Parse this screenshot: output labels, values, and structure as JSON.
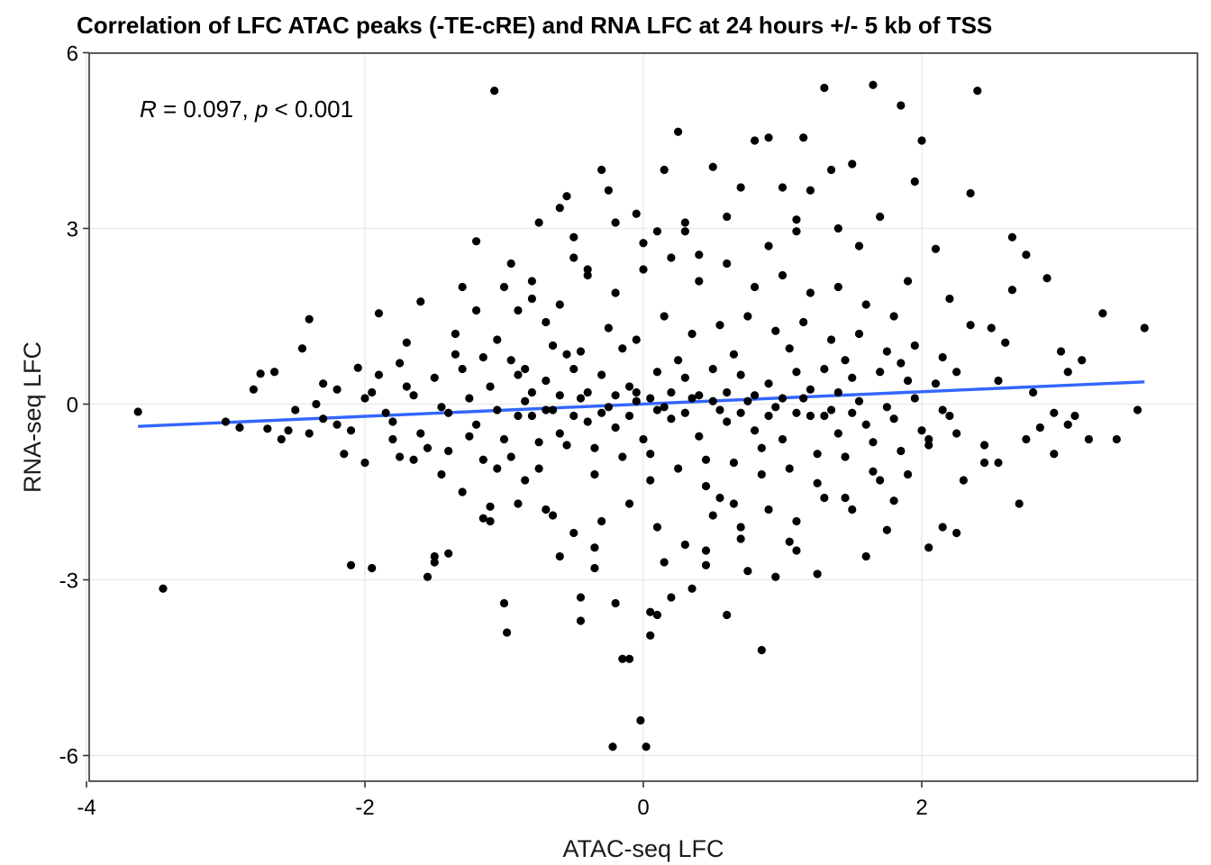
{
  "chart_data": {
    "type": "scatter",
    "title": "Correlation of LFC ATAC peaks (-TE-cRE) and RNA LFC at 24 hours +/- 5 kb of TSS",
    "xlabel": "ATAC-seq LFC",
    "ylabel": "RNA-seq LFC",
    "xlim": [
      -4.0,
      4.0
    ],
    "ylim": [
      -6.4,
      6.0
    ],
    "xticks": [
      -4,
      -2,
      0,
      2
    ],
    "xtick_labels": [
      "-4",
      "-2",
      "0",
      "2"
    ],
    "yticks": [
      -6,
      -3,
      0,
      3,
      6
    ],
    "ytick_labels": [
      "-6",
      "-3",
      "0",
      "3",
      "6"
    ],
    "grid": true,
    "annotation": {
      "r_symbol": "R",
      "r_text": " = 0.097, ",
      "p_symbol": "p",
      "p_text": " < 0.001"
    },
    "regression_line": {
      "x": [
        -3.63,
        3.6
      ],
      "y": [
        -0.38,
        0.38
      ],
      "color": "#3366FF"
    },
    "point_color": "#000000",
    "points": [
      [
        -3.63,
        -0.13
      ],
      [
        -3.45,
        -3.15
      ],
      [
        -2.8,
        0.25
      ],
      [
        -2.75,
        0.52
      ],
      [
        -2.7,
        -0.42
      ],
      [
        -2.65,
        0.55
      ],
      [
        -2.6,
        -0.6
      ],
      [
        -2.5,
        -0.1
      ],
      [
        -2.45,
        0.95
      ],
      [
        -2.4,
        1.45
      ],
      [
        -2.4,
        -0.5
      ],
      [
        -2.3,
        -0.25
      ],
      [
        -2.2,
        0.25
      ],
      [
        -2.15,
        -0.85
      ],
      [
        -2.1,
        -2.75
      ],
      [
        -2.05,
        0.62
      ],
      [
        -2.0,
        -1.0
      ],
      [
        -1.95,
        -2.8
      ],
      [
        -1.9,
        1.55
      ],
      [
        -1.8,
        -0.6
      ],
      [
        -1.75,
        -0.9
      ],
      [
        -1.7,
        1.05
      ],
      [
        -1.65,
        -0.95
      ],
      [
        -1.6,
        1.75
      ],
      [
        -1.55,
        -2.95
      ],
      [
        -1.5,
        -2.7
      ],
      [
        -1.5,
        -2.6
      ],
      [
        -1.4,
        -2.55
      ],
      [
        -1.4,
        -0.8
      ],
      [
        -1.3,
        2.0
      ],
      [
        -1.3,
        -1.5
      ],
      [
        -1.2,
        2.78
      ],
      [
        -1.15,
        -1.95
      ],
      [
        -1.1,
        -1.75
      ],
      [
        -1.05,
        -1.1
      ],
      [
        -1.0,
        -3.4
      ],
      [
        -0.98,
        -3.9
      ],
      [
        -0.95,
        2.4
      ],
      [
        -1.07,
        5.35
      ],
      [
        -0.9,
        1.6
      ],
      [
        -0.85,
        -1.3
      ],
      [
        -0.8,
        1.8
      ],
      [
        -0.75,
        3.1
      ],
      [
        -0.7,
        1.4
      ],
      [
        -0.65,
        -1.9
      ],
      [
        -0.6,
        3.35
      ],
      [
        -0.55,
        3.55
      ],
      [
        -0.5,
        2.5
      ],
      [
        -0.45,
        -3.7
      ],
      [
        -0.45,
        -3.3
      ],
      [
        -0.4,
        2.3
      ],
      [
        -0.35,
        -2.8
      ],
      [
        -0.3,
        4.0
      ],
      [
        -0.25,
        3.65
      ],
      [
        -0.2,
        -3.4
      ],
      [
        -0.15,
        -4.35
      ],
      [
        -0.1,
        -4.35
      ],
      [
        -0.05,
        3.25
      ],
      [
        0.0,
        2.75
      ],
      [
        0.05,
        -3.55
      ],
      [
        0.1,
        2.95
      ],
      [
        0.15,
        4.0
      ],
      [
        -0.02,
        -5.4
      ],
      [
        0.02,
        -5.85
      ],
      [
        -0.22,
        -5.85
      ],
      [
        0.05,
        -3.95
      ],
      [
        0.1,
        -3.6
      ],
      [
        0.2,
        -3.3
      ],
      [
        0.25,
        4.65
      ],
      [
        0.3,
        3.1
      ],
      [
        0.35,
        -3.15
      ],
      [
        0.4,
        2.55
      ],
      [
        0.45,
        -2.75
      ],
      [
        0.5,
        4.05
      ],
      [
        0.55,
        -1.6
      ],
      [
        0.6,
        -3.6
      ],
      [
        0.65,
        -1.7
      ],
      [
        0.7,
        3.7
      ],
      [
        0.75,
        -2.85
      ],
      [
        0.8,
        4.5
      ],
      [
        0.85,
        -4.2
      ],
      [
        0.9,
        4.55
      ],
      [
        0.95,
        -2.95
      ],
      [
        1.0,
        3.7
      ],
      [
        1.05,
        -2.35
      ],
      [
        1.1,
        3.15
      ],
      [
        1.15,
        4.55
      ],
      [
        1.2,
        3.65
      ],
      [
        1.25,
        -2.9
      ],
      [
        1.3,
        5.4
      ],
      [
        1.35,
        4.0
      ],
      [
        1.4,
        3.0
      ],
      [
        1.45,
        -1.6
      ],
      [
        1.5,
        4.1
      ],
      [
        1.55,
        2.7
      ],
      [
        1.6,
        -2.6
      ],
      [
        1.65,
        5.45
      ],
      [
        1.7,
        3.2
      ],
      [
        1.75,
        -2.15
      ],
      [
        1.8,
        -1.65
      ],
      [
        1.85,
        5.1
      ],
      [
        1.9,
        2.1
      ],
      [
        1.95,
        3.8
      ],
      [
        2.0,
        4.5
      ],
      [
        2.05,
        -2.45
      ],
      [
        2.1,
        2.65
      ],
      [
        2.15,
        -2.1
      ],
      [
        2.2,
        1.8
      ],
      [
        2.25,
        -2.2
      ],
      [
        2.3,
        -1.3
      ],
      [
        2.35,
        3.6
      ],
      [
        2.4,
        5.35
      ],
      [
        2.45,
        -0.7
      ],
      [
        2.5,
        1.3
      ],
      [
        2.55,
        -1.0
      ],
      [
        2.6,
        1.05
      ],
      [
        2.65,
        2.85
      ],
      [
        2.7,
        -1.7
      ],
      [
        2.75,
        2.55
      ],
      [
        2.8,
        0.2
      ],
      [
        2.85,
        -0.4
      ],
      [
        2.9,
        2.15
      ],
      [
        2.95,
        -0.85
      ],
      [
        3.0,
        0.9
      ],
      [
        3.05,
        0.55
      ],
      [
        3.1,
        -0.2
      ],
      [
        3.15,
        0.75
      ],
      [
        3.2,
        -0.6
      ],
      [
        3.3,
        1.55
      ],
      [
        3.4,
        -0.6
      ],
      [
        3.55,
        -0.1
      ],
      [
        3.6,
        1.3
      ],
      [
        3.05,
        -0.35
      ],
      [
        2.95,
        -0.15
      ],
      [
        2.75,
        -0.6
      ],
      [
        2.65,
        1.95
      ],
      [
        2.55,
        0.4
      ],
      [
        2.45,
        -1.0
      ],
      [
        2.35,
        1.35
      ],
      [
        2.25,
        0.55
      ],
      [
        -1.45,
        -1.2
      ],
      [
        -1.35,
        1.2
      ],
      [
        -1.25,
        -0.55
      ],
      [
        -1.15,
        0.8
      ],
      [
        -1.05,
        1.1
      ],
      [
        -0.95,
        -0.9
      ],
      [
        -0.85,
        0.6
      ],
      [
        -0.75,
        -1.1
      ],
      [
        -0.65,
        1.0
      ],
      [
        -0.55,
        -0.7
      ],
      [
        -0.45,
        0.9
      ],
      [
        -0.35,
        -1.2
      ],
      [
        -0.25,
        1.3
      ],
      [
        -0.15,
        -0.9
      ],
      [
        -0.05,
        1.1
      ],
      [
        0.05,
        -1.3
      ],
      [
        0.15,
        1.5
      ],
      [
        0.25,
        -1.1
      ],
      [
        0.35,
        1.2
      ],
      [
        0.45,
        -1.4
      ],
      [
        0.55,
        1.35
      ],
      [
        0.65,
        -1.0
      ],
      [
        0.75,
        1.5
      ],
      [
        0.85,
        -1.2
      ],
      [
        0.95,
        1.25
      ],
      [
        1.05,
        -1.1
      ],
      [
        1.15,
        1.4
      ],
      [
        1.25,
        -1.35
      ],
      [
        1.35,
        1.1
      ],
      [
        1.45,
        -0.9
      ],
      [
        1.55,
        1.2
      ],
      [
        1.65,
        -1.15
      ],
      [
        1.75,
        0.9
      ],
      [
        1.85,
        -0.8
      ],
      [
        1.95,
        1.0
      ],
      [
        2.05,
        -0.7
      ],
      [
        2.15,
        0.8
      ],
      [
        2.25,
        -0.5
      ],
      [
        -1.9,
        0.5
      ],
      [
        -1.8,
        -0.3
      ],
      [
        -1.7,
        0.3
      ],
      [
        -1.6,
        -0.5
      ],
      [
        -1.5,
        0.45
      ],
      [
        -1.4,
        -0.15
      ],
      [
        -1.3,
        0.6
      ],
      [
        -1.2,
        -0.35
      ],
      [
        -1.1,
        0.3
      ],
      [
        -1.0,
        -0.6
      ],
      [
        -0.9,
        0.5
      ],
      [
        -0.8,
        -0.2
      ],
      [
        -0.7,
        0.4
      ],
      [
        -0.6,
        -0.5
      ],
      [
        -0.5,
        0.6
      ],
      [
        -0.4,
        -0.3
      ],
      [
        -0.3,
        0.5
      ],
      [
        -0.2,
        -0.4
      ],
      [
        -0.1,
        0.3
      ],
      [
        0.0,
        -0.6
      ],
      [
        0.1,
        0.55
      ],
      [
        0.2,
        -0.25
      ],
      [
        0.3,
        0.45
      ],
      [
        0.4,
        -0.55
      ],
      [
        0.5,
        0.6
      ],
      [
        0.6,
        -0.3
      ],
      [
        0.7,
        0.5
      ],
      [
        0.8,
        -0.45
      ],
      [
        0.9,
        0.35
      ],
      [
        1.0,
        -0.6
      ],
      [
        1.1,
        0.55
      ],
      [
        1.2,
        -0.2
      ],
      [
        1.3,
        0.6
      ],
      [
        1.4,
        -0.5
      ],
      [
        1.5,
        0.45
      ],
      [
        1.6,
        -0.35
      ],
      [
        1.7,
        0.55
      ],
      [
        1.8,
        -0.25
      ],
      [
        1.9,
        0.4
      ],
      [
        2.0,
        -0.45
      ],
      [
        2.1,
        0.35
      ],
      [
        2.2,
        -0.2
      ],
      [
        -2.2,
        -0.35
      ],
      [
        -2.0,
        0.1
      ],
      [
        -1.85,
        -0.15
      ],
      [
        -1.65,
        0.15
      ],
      [
        -1.45,
        -0.05
      ],
      [
        -1.25,
        0.1
      ],
      [
        -1.05,
        -0.1
      ],
      [
        -0.85,
        0.05
      ],
      [
        -0.65,
        -0.1
      ],
      [
        -0.45,
        0.1
      ],
      [
        -0.25,
        -0.05
      ],
      [
        -0.05,
        0.05
      ],
      [
        0.15,
        -0.05
      ],
      [
        0.35,
        0.1
      ],
      [
        0.55,
        -0.1
      ],
      [
        0.75,
        0.05
      ],
      [
        0.95,
        -0.05
      ],
      [
        1.15,
        0.1
      ],
      [
        1.35,
        -0.1
      ],
      [
        1.55,
        0.05
      ],
      [
        1.75,
        -0.05
      ],
      [
        1.95,
        0.1
      ],
      [
        2.15,
        -0.1
      ],
      [
        -2.35,
        0.0
      ],
      [
        -1.75,
        0.7
      ],
      [
        -1.55,
        -0.75
      ],
      [
        -1.35,
        0.85
      ],
      [
        -1.15,
        -0.95
      ],
      [
        -0.95,
        0.75
      ],
      [
        -0.75,
        -0.65
      ],
      [
        -0.55,
        0.85
      ],
      [
        -0.35,
        -0.75
      ],
      [
        -0.15,
        0.95
      ],
      [
        0.05,
        -0.85
      ],
      [
        0.25,
        0.75
      ],
      [
        0.45,
        -0.95
      ],
      [
        0.65,
        0.85
      ],
      [
        0.85,
        -0.75
      ],
      [
        1.05,
        0.95
      ],
      [
        1.25,
        -0.85
      ],
      [
        1.45,
        0.75
      ],
      [
        1.65,
        -0.65
      ],
      [
        1.85,
        0.7
      ],
      [
        2.05,
        -0.6
      ],
      [
        -1.2,
        1.6
      ],
      [
        -1.0,
        2.0
      ],
      [
        -0.8,
        2.1
      ],
      [
        -0.6,
        1.7
      ],
      [
        -0.4,
        2.2
      ],
      [
        -0.2,
        1.9
      ],
      [
        0.0,
        2.3
      ],
      [
        0.2,
        2.5
      ],
      [
        0.4,
        2.1
      ],
      [
        0.6,
        2.4
      ],
      [
        0.8,
        2.0
      ],
      [
        1.0,
        2.2
      ],
      [
        1.2,
        1.9
      ],
      [
        1.4,
        2.0
      ],
      [
        1.6,
        1.7
      ],
      [
        1.8,
        1.5
      ],
      [
        -1.1,
        -2.0
      ],
      [
        -0.9,
        -1.7
      ],
      [
        -0.7,
        -1.8
      ],
      [
        -0.5,
        -2.2
      ],
      [
        -0.3,
        -2.0
      ],
      [
        -0.1,
        -1.7
      ],
      [
        0.1,
        -2.1
      ],
      [
        0.3,
        -2.4
      ],
      [
        0.5,
        -1.9
      ],
      [
        0.7,
        -2.1
      ],
      [
        0.9,
        -1.8
      ],
      [
        1.1,
        -2.0
      ],
      [
        1.3,
        -1.6
      ],
      [
        1.5,
        -1.8
      ],
      [
        1.7,
        -1.3
      ],
      [
        1.9,
        -1.2
      ],
      [
        -0.6,
        -2.6
      ],
      [
        -0.35,
        -2.45
      ],
      [
        0.15,
        -2.7
      ],
      [
        0.45,
        -2.5
      ],
      [
        0.7,
        -2.3
      ],
      [
        1.1,
        -2.5
      ],
      [
        -0.5,
        2.85
      ],
      [
        -0.2,
        3.1
      ],
      [
        0.3,
        2.95
      ],
      [
        0.6,
        3.2
      ],
      [
        0.9,
        2.7
      ],
      [
        1.1,
        2.95
      ],
      [
        -2.55,
        -0.45
      ],
      [
        -2.9,
        -0.4
      ],
      [
        -3.0,
        -0.3
      ],
      [
        -2.3,
        0.35
      ],
      [
        -2.1,
        -0.45
      ],
      [
        -1.95,
        0.2
      ],
      [
        -0.05,
        0.2
      ],
      [
        0.05,
        0.1
      ],
      [
        0.1,
        -0.1
      ],
      [
        0.2,
        0.2
      ],
      [
        0.3,
        -0.15
      ],
      [
        0.4,
        0.15
      ],
      [
        -0.1,
        -0.2
      ],
      [
        -0.2,
        0.15
      ],
      [
        -0.3,
        -0.15
      ],
      [
        0.5,
        0.05
      ],
      [
        0.6,
        0.2
      ],
      [
        0.7,
        -0.15
      ],
      [
        0.8,
        0.15
      ],
      [
        0.9,
        -0.2
      ],
      [
        1.0,
        0.1
      ],
      [
        -0.4,
        0.2
      ],
      [
        -0.5,
        -0.2
      ],
      [
        -0.6,
        0.15
      ],
      [
        -0.7,
        -0.1
      ],
      [
        -0.8,
        0.2
      ],
      [
        -0.9,
        -0.2
      ],
      [
        1.1,
        -0.15
      ],
      [
        1.2,
        0.25
      ],
      [
        1.3,
        -0.2
      ],
      [
        1.4,
        0.2
      ],
      [
        1.5,
        -0.15
      ]
    ]
  }
}
